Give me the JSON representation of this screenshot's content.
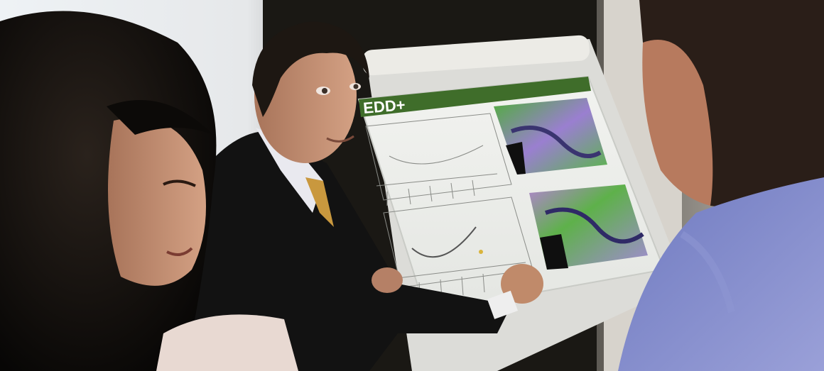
{
  "poster": {
    "title": "EDD+"
  },
  "colors": {
    "poster_banner": "#3f6d2a",
    "map_green": "#4fae3a",
    "map_purple": "#9a7fd0",
    "shirt_blue": "#7b86c8",
    "background_wall": "#d9d6d1",
    "suit": "#141414"
  }
}
